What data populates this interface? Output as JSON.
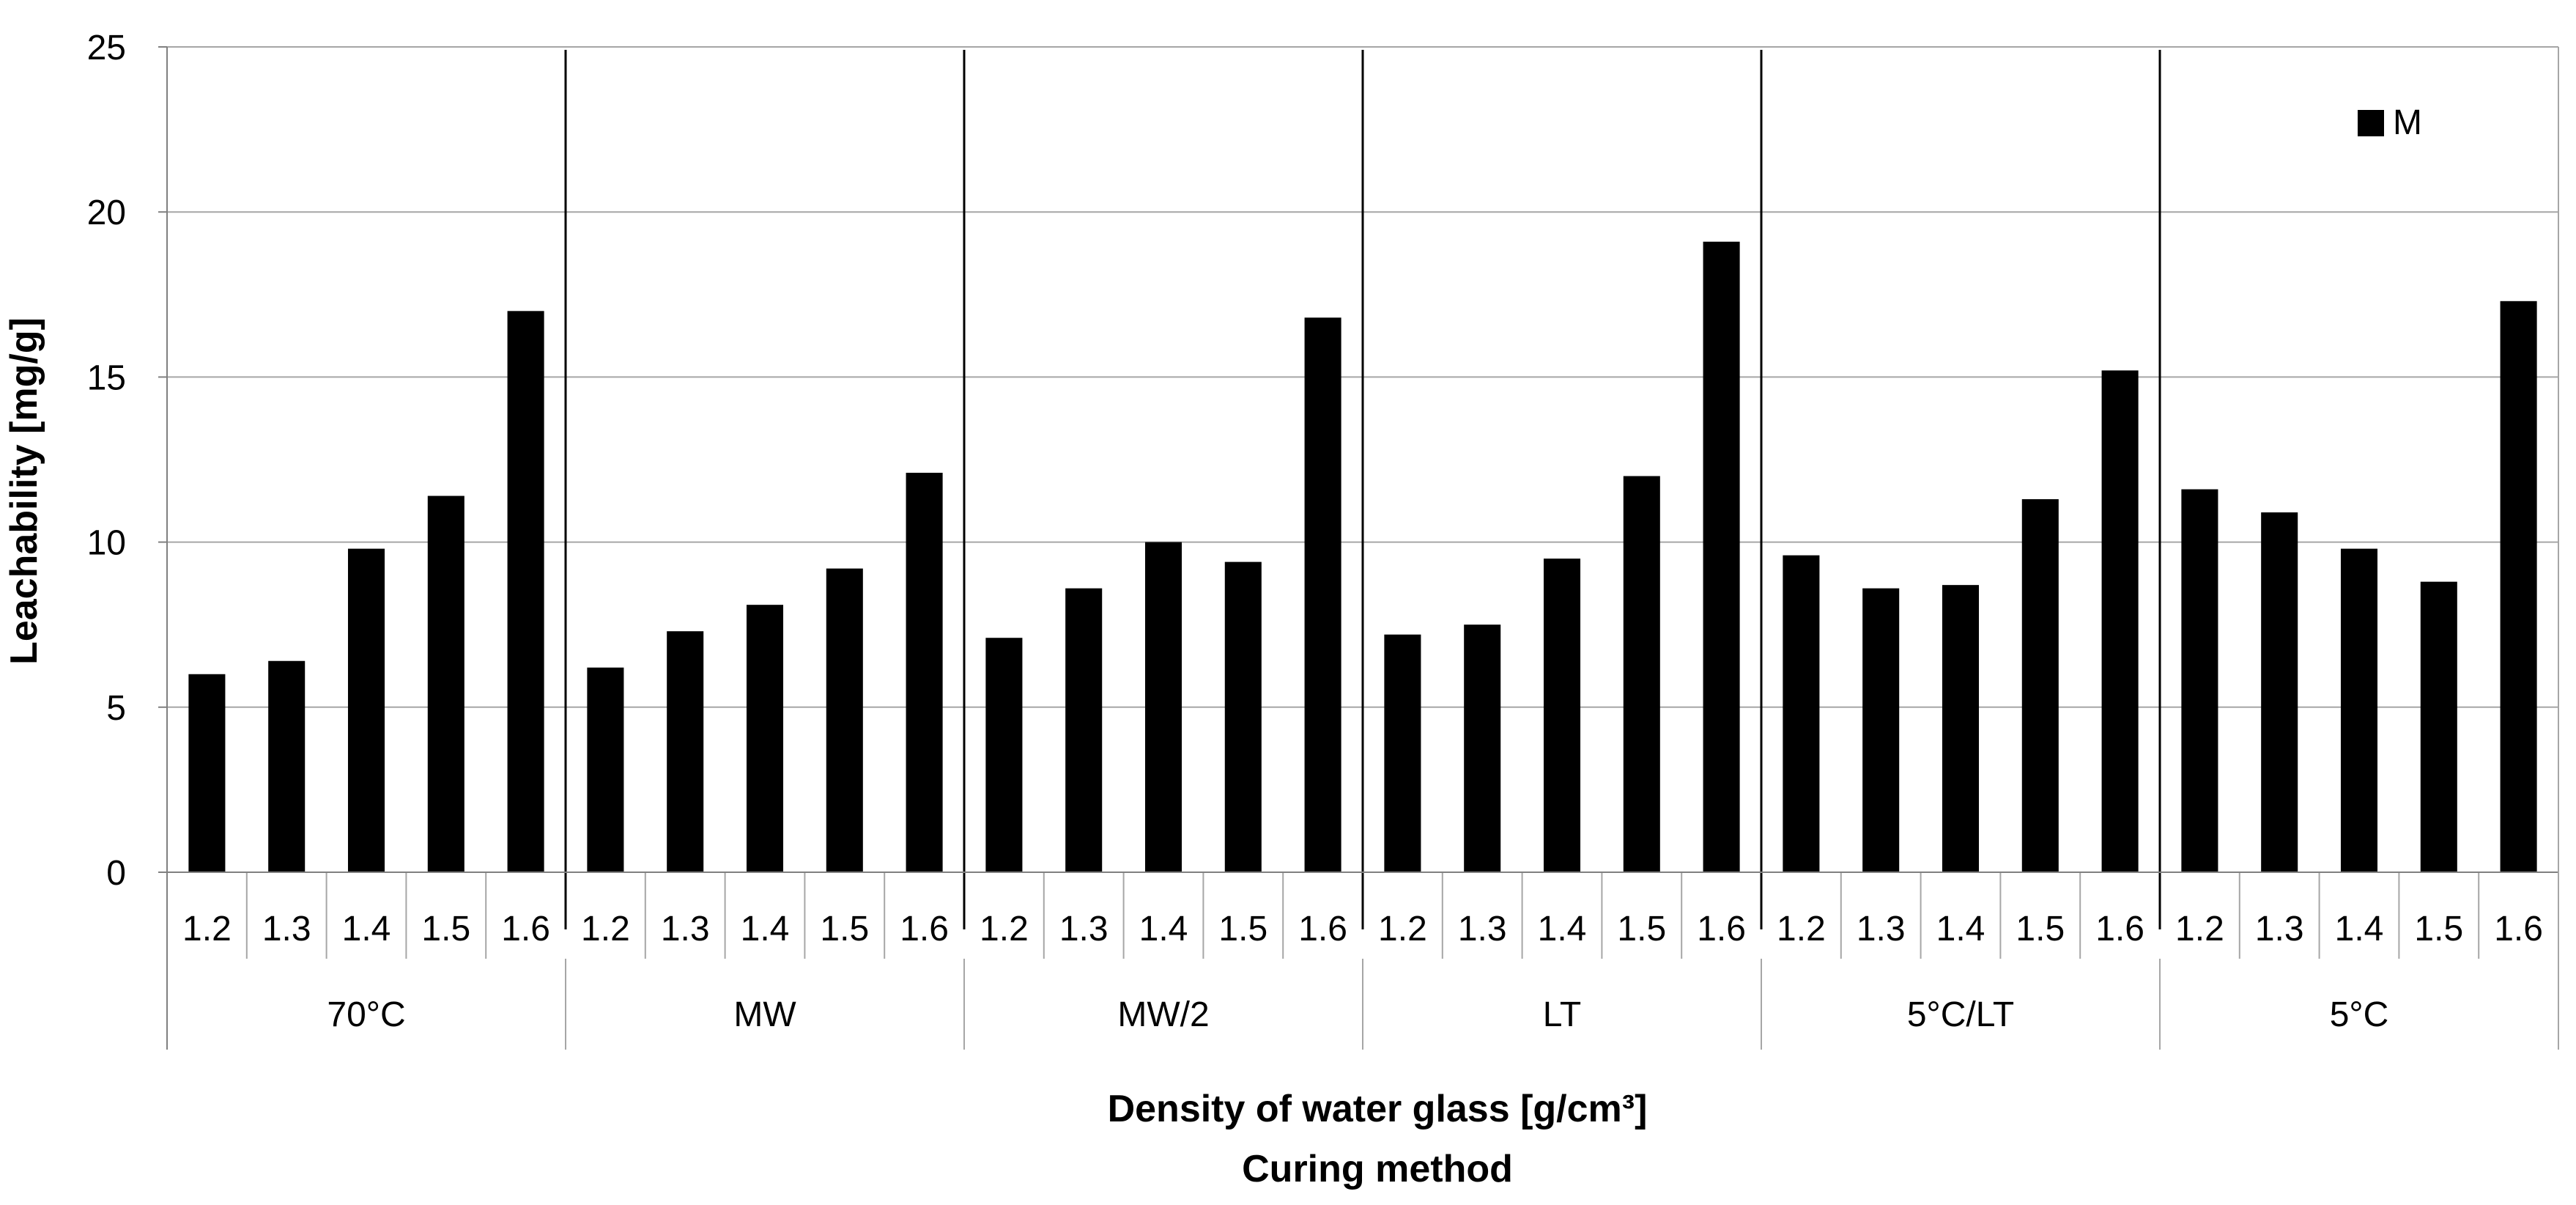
{
  "chart_data": {
    "type": "bar",
    "ylabel": "Leachability [mg/g]",
    "xlabel": "Density of water glass [g/cm³]",
    "xlabel2": "Curing method",
    "ylim": [
      0,
      25
    ],
    "yticks": [
      0,
      5,
      10,
      15,
      20,
      25
    ],
    "ytick_labels": [
      "0",
      "5",
      "10",
      "15",
      "20",
      "25"
    ],
    "grid": true,
    "legend": {
      "position": "top-right",
      "entries": [
        "M"
      ]
    },
    "groups": [
      {
        "label": "70°C",
        "categories": [
          "1.2",
          "1.3",
          "1.4",
          "1.5",
          "1.6"
        ]
      },
      {
        "label": "MW",
        "categories": [
          "1.2",
          "1.3",
          "1.4",
          "1.5",
          "1.6"
        ]
      },
      {
        "label": "MW/2",
        "categories": [
          "1.2",
          "1.3",
          "1.4",
          "1.5",
          "1.6"
        ]
      },
      {
        "label": "LT",
        "categories": [
          "1.2",
          "1.3",
          "1.4",
          "1.5",
          "1.6"
        ]
      },
      {
        "label": "5°C/LT",
        "categories": [
          "1.2",
          "1.3",
          "1.4",
          "1.5",
          "1.6"
        ]
      },
      {
        "label": "5°C",
        "categories": [
          "1.2",
          "1.3",
          "1.4",
          "1.5",
          "1.6"
        ]
      }
    ],
    "series": [
      {
        "name": "M",
        "color": "#000000",
        "values": [
          6.0,
          6.4,
          9.8,
          11.4,
          17.0,
          6.2,
          7.3,
          8.1,
          9.2,
          12.1,
          7.1,
          8.6,
          10.0,
          9.4,
          16.8,
          7.2,
          7.5,
          9.5,
          12.0,
          19.1,
          9.6,
          8.6,
          8.7,
          11.3,
          15.2,
          11.6,
          10.9,
          9.8,
          8.8,
          17.3
        ]
      }
    ]
  }
}
